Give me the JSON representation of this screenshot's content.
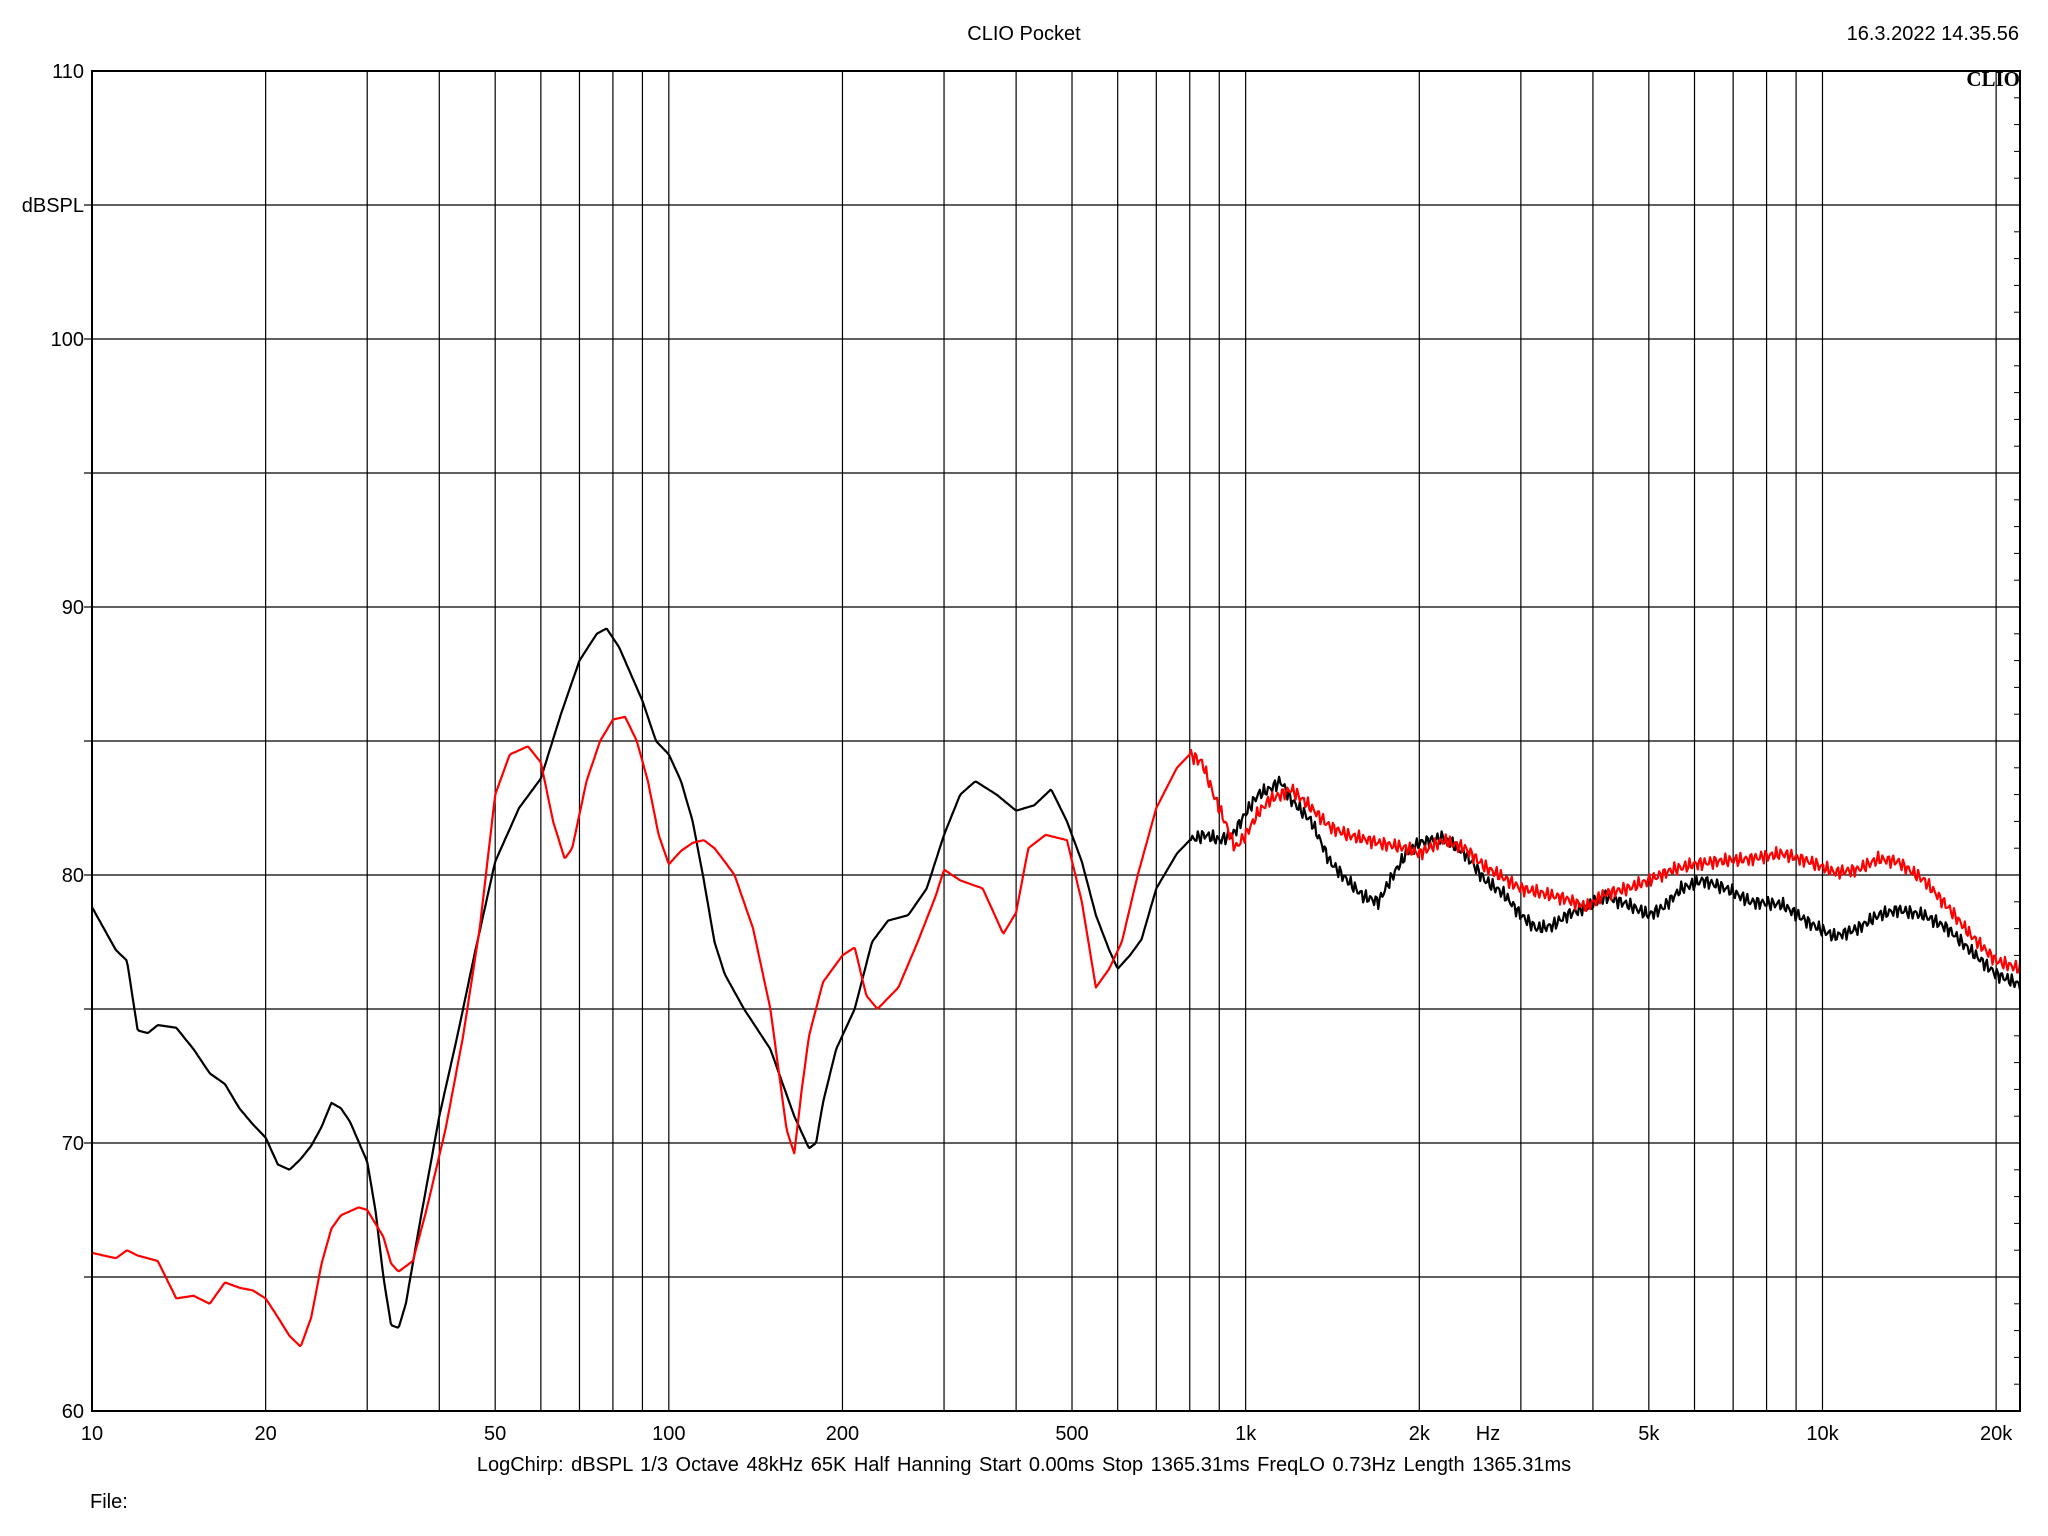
{
  "header": {
    "title": "CLIO Pocket",
    "timestamp": "16.3.2022 14.35.56",
    "brand": "CLIO"
  },
  "footer": {
    "settings": "LogChirp:  dBSPL   1/3 Octave   48kHz   65K   Half Hanning   Start 0.00ms   Stop 1365.31ms   FreqLO 0.73Hz   Length 1365.31ms",
    "file_label": "File:"
  },
  "colors": {
    "grid": "#000000",
    "series_black": "#000000",
    "series_red": "#ff0000"
  },
  "chart_data": {
    "type": "line",
    "title": "CLIO Pocket",
    "xscale": "log",
    "xlim": [
      10,
      22000
    ],
    "ylim": [
      60,
      110
    ],
    "xlabel": "Hz",
    "ylabel": "dBSPL",
    "grid": true,
    "legend": "none",
    "x_tick_labels": [
      {
        "v": 10,
        "t": "10"
      },
      {
        "v": 20,
        "t": "20"
      },
      {
        "v": 50,
        "t": "50"
      },
      {
        "v": 100,
        "t": "100"
      },
      {
        "v": 200,
        "t": "200"
      },
      {
        "v": 500,
        "t": "500"
      },
      {
        "v": 1000,
        "t": "1k"
      },
      {
        "v": 2000,
        "t": "2k"
      },
      {
        "v": 5000,
        "t": "5k"
      },
      {
        "v": 10000,
        "t": "10k"
      },
      {
        "v": 20000,
        "t": "20k"
      }
    ],
    "y_tick_labels": [
      {
        "v": 110,
        "t": "110"
      },
      {
        "v": 100,
        "t": "100"
      },
      {
        "v": 90,
        "t": "90"
      },
      {
        "v": 80,
        "t": "80"
      },
      {
        "v": 70,
        "t": "70"
      },
      {
        "v": 60,
        "t": "60"
      }
    ],
    "series": [
      {
        "color": "#000000",
        "points": [
          [
            10,
            78.8
          ],
          [
            11,
            77.2
          ],
          [
            11.5,
            76.8
          ],
          [
            12,
            74.2
          ],
          [
            12.5,
            74.1
          ],
          [
            13,
            74.4
          ],
          [
            14,
            74.3
          ],
          [
            15,
            73.5
          ],
          [
            16,
            72.6
          ],
          [
            17,
            72.2
          ],
          [
            18,
            71.3
          ],
          [
            19,
            70.7
          ],
          [
            20,
            70.2
          ],
          [
            21,
            69.2
          ],
          [
            22,
            69.0
          ],
          [
            23,
            69.4
          ],
          [
            24,
            69.9
          ],
          [
            25,
            70.6
          ],
          [
            26,
            71.5
          ],
          [
            27,
            71.3
          ],
          [
            28,
            70.8
          ],
          [
            30,
            69.3
          ],
          [
            31,
            67.5
          ],
          [
            32,
            65.0
          ],
          [
            33,
            63.2
          ],
          [
            34,
            63.1
          ],
          [
            35,
            64.0
          ],
          [
            37,
            67.0
          ],
          [
            40,
            71.0
          ],
          [
            43,
            74.0
          ],
          [
            46,
            77.0
          ],
          [
            50,
            80.5
          ],
          [
            55,
            82.5
          ],
          [
            60,
            83.6
          ],
          [
            65,
            86.0
          ],
          [
            70,
            88.0
          ],
          [
            75,
            89.0
          ],
          [
            78,
            89.2
          ],
          [
            82,
            88.5
          ],
          [
            90,
            86.5
          ],
          [
            95,
            85.0
          ],
          [
            100,
            84.5
          ],
          [
            105,
            83.5
          ],
          [
            110,
            82.0
          ],
          [
            115,
            79.8
          ],
          [
            120,
            77.5
          ],
          [
            125,
            76.3
          ],
          [
            135,
            75.0
          ],
          [
            150,
            73.5
          ],
          [
            165,
            71.0
          ],
          [
            175,
            69.8
          ],
          [
            180,
            70.0
          ],
          [
            185,
            71.5
          ],
          [
            195,
            73.5
          ],
          [
            210,
            75.0
          ],
          [
            225,
            77.5
          ],
          [
            240,
            78.3
          ],
          [
            260,
            78.5
          ],
          [
            280,
            79.5
          ],
          [
            300,
            81.5
          ],
          [
            320,
            83.0
          ],
          [
            340,
            83.5
          ],
          [
            370,
            83.0
          ],
          [
            400,
            82.4
          ],
          [
            430,
            82.6
          ],
          [
            460,
            83.2
          ],
          [
            490,
            82.0
          ],
          [
            520,
            80.5
          ],
          [
            550,
            78.5
          ],
          [
            580,
            77.2
          ],
          [
            600,
            76.5
          ],
          [
            630,
            77.0
          ],
          [
            660,
            77.6
          ],
          [
            700,
            79.5
          ],
          [
            760,
            80.8
          ],
          [
            800,
            81.3
          ],
          [
            850,
            81.5
          ],
          [
            900,
            81.3
          ],
          [
            950,
            81.5
          ],
          [
            1000,
            82.3
          ],
          [
            1050,
            83.0
          ],
          [
            1100,
            83.2
          ],
          [
            1150,
            83.5
          ],
          [
            1200,
            82.8
          ],
          [
            1300,
            82.0
          ],
          [
            1400,
            80.5
          ],
          [
            1500,
            79.8
          ],
          [
            1600,
            79.2
          ],
          [
            1700,
            79.0
          ],
          [
            1800,
            80.0
          ],
          [
            1900,
            80.8
          ],
          [
            2000,
            81.2
          ],
          [
            2200,
            81.4
          ],
          [
            2400,
            80.8
          ],
          [
            2600,
            79.8
          ],
          [
            2800,
            79.3
          ],
          [
            3000,
            78.5
          ],
          [
            3200,
            78.0
          ],
          [
            3400,
            78.1
          ],
          [
            3600,
            78.5
          ],
          [
            3900,
            78.8
          ],
          [
            4200,
            79.2
          ],
          [
            4600,
            78.9
          ],
          [
            5000,
            78.5
          ],
          [
            5300,
            78.8
          ],
          [
            5700,
            79.5
          ],
          [
            6200,
            79.8
          ],
          [
            6800,
            79.5
          ],
          [
            7500,
            79.0
          ],
          [
            8500,
            78.9
          ],
          [
            9500,
            78.2
          ],
          [
            10500,
            77.7
          ],
          [
            11500,
            78.0
          ],
          [
            12500,
            78.5
          ],
          [
            13500,
            78.7
          ],
          [
            15000,
            78.5
          ],
          [
            16500,
            78.0
          ],
          [
            18000,
            77.2
          ],
          [
            20000,
            76.3
          ],
          [
            22000,
            75.9
          ]
        ]
      },
      {
        "color": "#ff0000",
        "points": [
          [
            10,
            65.9
          ],
          [
            11,
            65.7
          ],
          [
            11.5,
            66.0
          ],
          [
            12,
            65.8
          ],
          [
            13,
            65.6
          ],
          [
            14,
            64.2
          ],
          [
            15,
            64.3
          ],
          [
            16,
            64.0
          ],
          [
            17,
            64.8
          ],
          [
            18,
            64.6
          ],
          [
            19,
            64.5
          ],
          [
            20,
            64.2
          ],
          [
            21,
            63.5
          ],
          [
            22,
            62.8
          ],
          [
            23,
            62.4
          ],
          [
            24,
            63.5
          ],
          [
            25,
            65.5
          ],
          [
            26,
            66.8
          ],
          [
            27,
            67.3
          ],
          [
            29,
            67.6
          ],
          [
            30,
            67.5
          ],
          [
            32,
            66.5
          ],
          [
            33,
            65.5
          ],
          [
            34,
            65.2
          ],
          [
            36,
            65.6
          ],
          [
            38,
            67.5
          ],
          [
            41,
            70.5
          ],
          [
            44,
            74.0
          ],
          [
            47,
            78.0
          ],
          [
            50,
            83.0
          ],
          [
            53,
            84.5
          ],
          [
            57,
            84.8
          ],
          [
            60,
            84.2
          ],
          [
            63,
            82.0
          ],
          [
            66,
            80.6
          ],
          [
            68,
            81.0
          ],
          [
            72,
            83.5
          ],
          [
            76,
            85.0
          ],
          [
            80,
            85.8
          ],
          [
            84,
            85.9
          ],
          [
            88,
            85.0
          ],
          [
            92,
            83.5
          ],
          [
            96,
            81.5
          ],
          [
            100,
            80.4
          ],
          [
            105,
            80.9
          ],
          [
            110,
            81.2
          ],
          [
            115,
            81.3
          ],
          [
            120,
            81.0
          ],
          [
            125,
            80.5
          ],
          [
            130,
            80.0
          ],
          [
            140,
            78.0
          ],
          [
            150,
            75.0
          ],
          [
            160,
            70.5
          ],
          [
            165,
            69.6
          ],
          [
            170,
            72.0
          ],
          [
            175,
            74.0
          ],
          [
            185,
            76.0
          ],
          [
            200,
            77.0
          ],
          [
            210,
            77.3
          ],
          [
            220,
            75.5
          ],
          [
            230,
            75.0
          ],
          [
            250,
            75.8
          ],
          [
            270,
            77.5
          ],
          [
            290,
            79.2
          ],
          [
            300,
            80.2
          ],
          [
            320,
            79.8
          ],
          [
            350,
            79.5
          ],
          [
            380,
            77.8
          ],
          [
            400,
            78.6
          ],
          [
            420,
            81.0
          ],
          [
            450,
            81.5
          ],
          [
            490,
            81.3
          ],
          [
            520,
            79.0
          ],
          [
            550,
            75.8
          ],
          [
            580,
            76.5
          ],
          [
            610,
            77.5
          ],
          [
            650,
            80.0
          ],
          [
            700,
            82.5
          ],
          [
            760,
            84.0
          ],
          [
            800,
            84.5
          ],
          [
            840,
            84.2
          ],
          [
            880,
            83.0
          ],
          [
            920,
            82.0
          ],
          [
            960,
            81.0
          ],
          [
            1000,
            81.5
          ],
          [
            1050,
            82.3
          ],
          [
            1100,
            82.8
          ],
          [
            1150,
            83.0
          ],
          [
            1200,
            83.2
          ],
          [
            1300,
            82.5
          ],
          [
            1400,
            81.8
          ],
          [
            1500,
            81.5
          ],
          [
            1700,
            81.2
          ],
          [
            1900,
            81.0
          ],
          [
            2000,
            80.8
          ],
          [
            2200,
            81.3
          ],
          [
            2400,
            81.0
          ],
          [
            2600,
            80.3
          ],
          [
            2800,
            79.9
          ],
          [
            3000,
            79.5
          ],
          [
            3300,
            79.3
          ],
          [
            3600,
            79.1
          ],
          [
            3900,
            78.8
          ],
          [
            4200,
            79.3
          ],
          [
            4600,
            79.5
          ],
          [
            5000,
            79.8
          ],
          [
            5500,
            80.2
          ],
          [
            6000,
            80.4
          ],
          [
            6500,
            80.5
          ],
          [
            7500,
            80.6
          ],
          [
            8500,
            80.8
          ],
          [
            9500,
            80.5
          ],
          [
            10500,
            80.1
          ],
          [
            11500,
            80.2
          ],
          [
            12500,
            80.6
          ],
          [
            13500,
            80.5
          ],
          [
            15000,
            79.8
          ],
          [
            16500,
            78.8
          ],
          [
            18000,
            77.8
          ],
          [
            20000,
            76.8
          ],
          [
            22000,
            76.5
          ]
        ]
      }
    ]
  }
}
